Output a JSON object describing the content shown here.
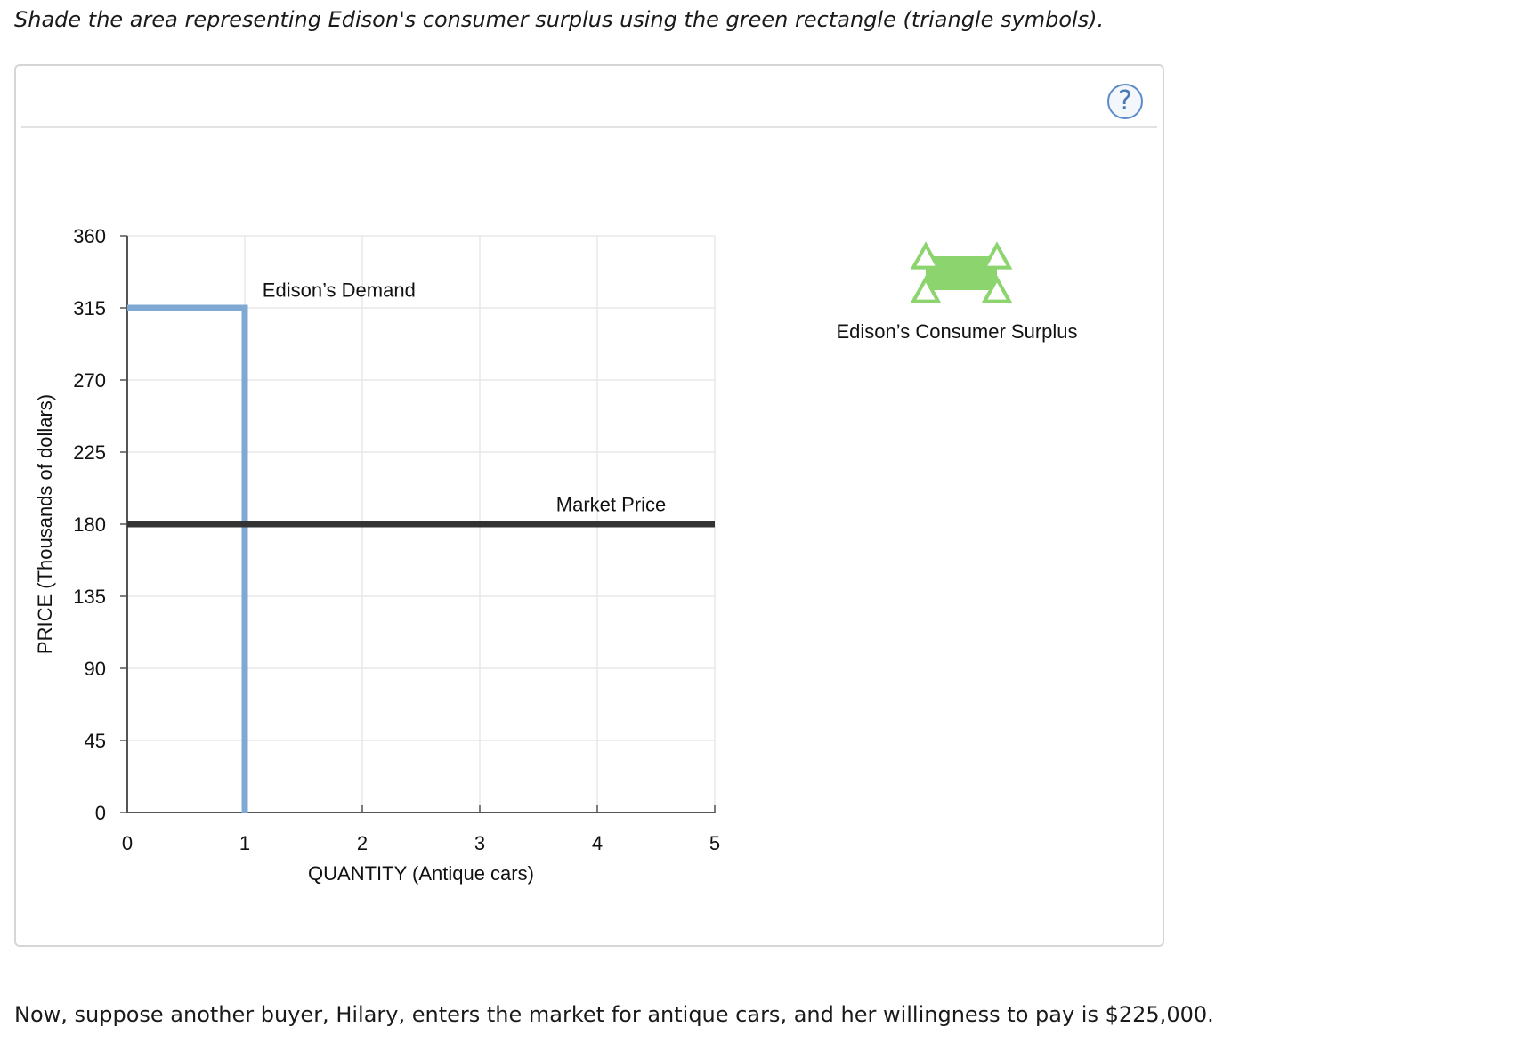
{
  "instruction": "Shade the area representing Edison's consumer surplus using the green rectangle (triangle symbols).",
  "help_glyph": "?",
  "palette": {
    "label": "Edison’s Consumer Surplus",
    "color": "#8cd46e",
    "icon": "green-rectangle-triangle-handles-icon"
  },
  "follow_up": "Now, suppose another buyer, Hilary, enters the market for antique cars, and her willingness to pay is $225,000.",
  "chart_data": {
    "type": "line",
    "xlabel": "QUANTITY (Antique cars)",
    "ylabel": "PRICE (Thousands of dollars)",
    "xlim": [
      0,
      5
    ],
    "ylim": [
      0,
      360
    ],
    "x_ticks": [
      "0",
      "1",
      "2",
      "3",
      "4",
      "5"
    ],
    "y_ticks": [
      "0",
      "45",
      "90",
      "135",
      "180",
      "225",
      "270",
      "315",
      "360"
    ],
    "grid": true,
    "series": [
      {
        "name": "Edison’s Demand",
        "color": "#7fa9d3",
        "points": [
          [
            0,
            315
          ],
          [
            1,
            315
          ],
          [
            1,
            0
          ]
        ],
        "label_at": [
          1.15,
          322
        ]
      },
      {
        "name": "Market Price",
        "color": "#333333",
        "points": [
          [
            0,
            180
          ],
          [
            5,
            180
          ]
        ],
        "label_at": [
          3.65,
          188
        ]
      }
    ]
  }
}
